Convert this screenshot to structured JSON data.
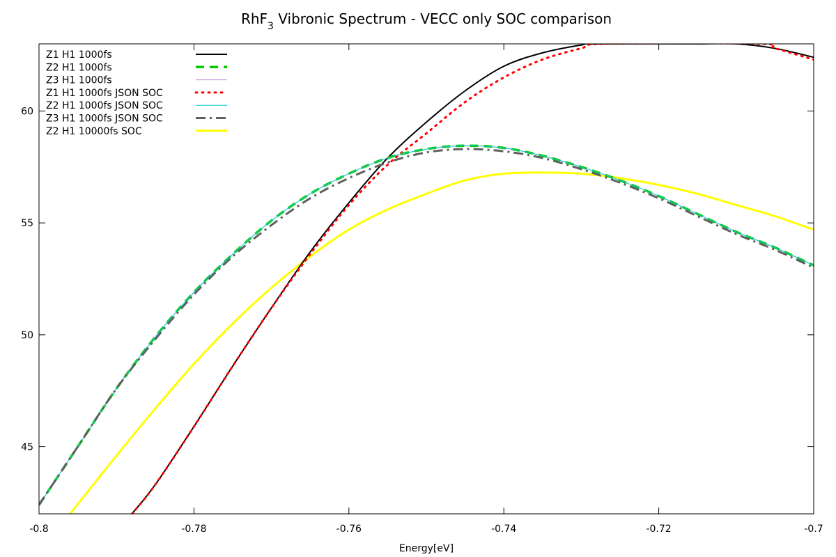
{
  "chart_data": {
    "type": "line",
    "title_main": "RhF",
    "title_sub": "3",
    "title_rest": " Vibronic Spectrum - VECC only SOC comparison",
    "xlabel": "Energy[eV]",
    "ylabel": "",
    "xlim": [
      -0.8,
      -0.7
    ],
    "ylim": [
      42,
      63
    ],
    "xticks": [
      -0.8,
      -0.78,
      -0.76,
      -0.74,
      -0.72,
      -0.7
    ],
    "xtick_labels": [
      "-0.8",
      "-0.78",
      "-0.76",
      "-0.74",
      "-0.72",
      "-0.7"
    ],
    "yticks": [
      45,
      50,
      55,
      60
    ],
    "ytick_labels": [
      "45",
      "50",
      "55",
      "60"
    ],
    "grid": false,
    "legend_position": "top-left",
    "series": [
      {
        "name": "Z1 H1 1000fs",
        "color": "#000000",
        "dash": "solid",
        "x": [
          -0.788,
          -0.785,
          -0.78,
          -0.775,
          -0.77,
          -0.765,
          -0.76,
          -0.755,
          -0.75,
          -0.745,
          -0.74,
          -0.735,
          -0.73,
          -0.728,
          -0.715,
          -0.71,
          -0.705,
          -0.7
        ],
        "y": [
          42.0,
          43.3,
          45.9,
          48.6,
          51.2,
          53.7,
          55.9,
          57.9,
          59.5,
          60.9,
          62.0,
          62.6,
          62.95,
          63.0,
          63.0,
          63.0,
          62.8,
          62.4
        ]
      },
      {
        "name": "Z2 H1 1000fs",
        "color": "#00cc00",
        "dash": "dashed",
        "x": [
          -0.8,
          -0.795,
          -0.79,
          -0.785,
          -0.78,
          -0.775,
          -0.77,
          -0.765,
          -0.76,
          -0.755,
          -0.75,
          -0.745,
          -0.74,
          -0.735,
          -0.73,
          -0.725,
          -0.72,
          -0.715,
          -0.71,
          -0.705,
          -0.7
        ],
        "y": [
          42.4,
          45.0,
          47.6,
          49.9,
          51.9,
          53.6,
          55.1,
          56.3,
          57.2,
          57.9,
          58.3,
          58.45,
          58.35,
          58.0,
          57.5,
          56.9,
          56.2,
          55.4,
          54.6,
          53.9,
          53.1
        ]
      },
      {
        "name": "Z3 H1 1000fs",
        "color": "#cc88dd",
        "dash": "thin",
        "x": [
          -0.8,
          -0.795,
          -0.79,
          -0.785,
          -0.78,
          -0.775,
          -0.77,
          -0.765,
          -0.76,
          -0.755,
          -0.75,
          -0.745,
          -0.74,
          -0.735,
          -0.73,
          -0.725,
          -0.72,
          -0.715,
          -0.71,
          -0.705,
          -0.7
        ],
        "y": [
          42.4,
          45.0,
          47.6,
          49.9,
          51.9,
          53.6,
          55.1,
          56.3,
          57.2,
          57.9,
          58.3,
          58.45,
          58.35,
          58.0,
          57.5,
          56.9,
          56.2,
          55.4,
          54.6,
          53.9,
          53.1
        ]
      },
      {
        "name": "Z1 H1 1000fs JSON SOC",
        "color": "#ff0000",
        "dash": "dotted",
        "x": [
          -0.788,
          -0.785,
          -0.78,
          -0.775,
          -0.77,
          -0.765,
          -0.76,
          -0.755,
          -0.75,
          -0.745,
          -0.74,
          -0.735,
          -0.73,
          -0.727,
          -0.707,
          -0.705,
          -0.7
        ],
        "y": [
          42.0,
          43.3,
          45.9,
          48.6,
          51.2,
          53.6,
          55.8,
          57.6,
          59.0,
          60.4,
          61.5,
          62.3,
          62.8,
          63.0,
          63.0,
          62.8,
          62.3
        ]
      },
      {
        "name": "Z2 H1 1000fs JSON SOC",
        "color": "#00cccc",
        "dash": "thin",
        "x": [
          -0.8,
          -0.795,
          -0.79,
          -0.785,
          -0.78,
          -0.775,
          -0.77,
          -0.765,
          -0.76,
          -0.755,
          -0.75,
          -0.745,
          -0.74,
          -0.735,
          -0.73,
          -0.725,
          -0.72,
          -0.715,
          -0.71,
          -0.705,
          -0.7
        ],
        "y": [
          42.4,
          45.0,
          47.6,
          49.9,
          51.9,
          53.6,
          55.1,
          56.3,
          57.2,
          57.9,
          58.3,
          58.45,
          58.35,
          58.0,
          57.5,
          56.9,
          56.2,
          55.4,
          54.6,
          53.9,
          53.1
        ]
      },
      {
        "name": "Z3 H1 1000fs JSON SOC",
        "color": "#606060",
        "dash": "dashdot",
        "x": [
          -0.8,
          -0.795,
          -0.79,
          -0.785,
          -0.78,
          -0.775,
          -0.77,
          -0.765,
          -0.76,
          -0.755,
          -0.75,
          -0.745,
          -0.74,
          -0.735,
          -0.73,
          -0.725,
          -0.72,
          -0.715,
          -0.71,
          -0.705,
          -0.7
        ],
        "y": [
          42.4,
          45.0,
          47.6,
          49.8,
          51.8,
          53.5,
          54.9,
          56.1,
          57.0,
          57.7,
          58.15,
          58.3,
          58.2,
          57.9,
          57.4,
          56.8,
          56.1,
          55.3,
          54.5,
          53.8,
          53.0
        ]
      },
      {
        "name": "Z2 H1 10000fs SOC",
        "color": "#ffff00",
        "dash": "thick",
        "x": [
          -0.796,
          -0.79,
          -0.785,
          -0.78,
          -0.775,
          -0.77,
          -0.765,
          -0.76,
          -0.755,
          -0.75,
          -0.745,
          -0.74,
          -0.735,
          -0.73,
          -0.725,
          -0.72,
          -0.715,
          -0.71,
          -0.705,
          -0.7
        ],
        "y": [
          42.0,
          44.6,
          46.7,
          48.7,
          50.5,
          52.1,
          53.5,
          54.7,
          55.6,
          56.3,
          56.9,
          57.2,
          57.25,
          57.2,
          57.0,
          56.7,
          56.3,
          55.8,
          55.3,
          54.7
        ]
      }
    ]
  }
}
